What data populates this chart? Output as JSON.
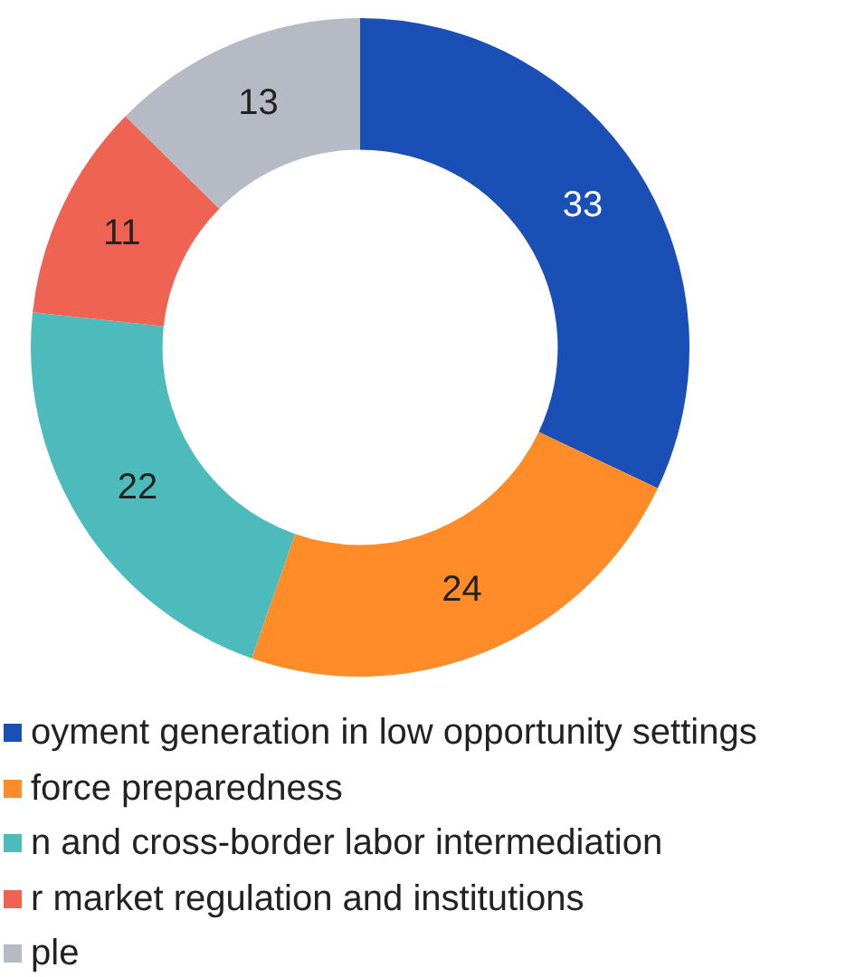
{
  "chart_data": {
    "type": "donut",
    "categories": [
      "oyment generation in low opportunity settings",
      "force preparedness",
      "n and cross-border labor intermediation",
      "r market regulation and institutions",
      "ple"
    ],
    "values": [
      33,
      24,
      22,
      11,
      13
    ],
    "colors": [
      "#1a4fb5",
      "#ff8c28",
      "#4dbbbb",
      "#ee6352",
      "#b6bac4"
    ],
    "data_labels": true,
    "legend": "bottom"
  }
}
